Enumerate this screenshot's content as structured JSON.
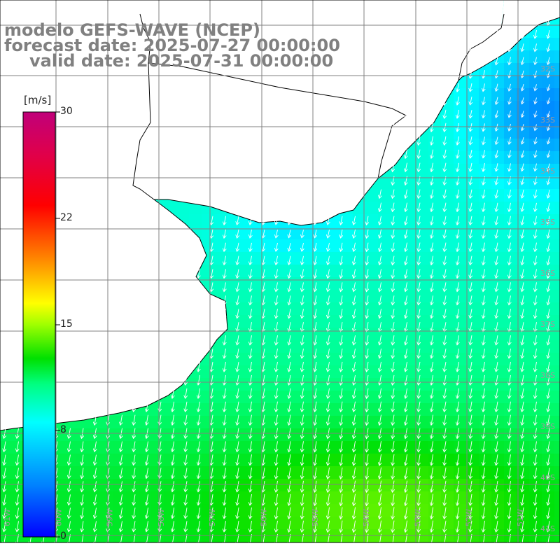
{
  "title": {
    "line1": "modelo GEFS-WAVE (NCEP)",
    "line2": "forecast date: 2025-07-27 00:00:00",
    "line3": "valid date: 2025-07-31 00:00:00"
  },
  "colorbar": {
    "units": "[m/s]",
    "min": 0,
    "max": 30,
    "ticks": [
      "30",
      "22",
      "15",
      "8",
      "0"
    ],
    "tick_values": [
      30,
      22,
      15,
      8,
      0
    ],
    "colors": [
      "#0000ff",
      "#0090ff",
      "#00ffff",
      "#00ff90",
      "#00e000",
      "#80ff00",
      "#ffff00",
      "#ff9000",
      "#ff2000",
      "#ff0000",
      "#c8007a"
    ]
  },
  "map": {
    "longitude_labels": [
      "61W",
      "60W",
      "59W",
      "58W",
      "57W",
      "56W",
      "55W",
      "54W",
      "53W",
      "52W",
      "51W",
      "50W"
    ],
    "latitude_labels": [
      "32S",
      "33S",
      "34S",
      "35S",
      "36S",
      "37S",
      "38S",
      "39S",
      "40S",
      "41S"
    ],
    "land_color": "#ffffff",
    "grid_color": "#808080",
    "arrow_color": "#ffffff"
  },
  "chart_data": {
    "type": "heatmap",
    "variable": "wind speed",
    "units": "m/s",
    "vmin": 0,
    "vmax": 30,
    "region": "South Atlantic off Uruguay / southern Brazil / Rio de la Plata",
    "speed_range_observed": [
      3,
      15
    ],
    "prevailing_direction": "flow toward the south-southwest",
    "field_description_levels": {
      "northeast_offshore": 4,
      "coastal_shelf": 9,
      "south_central": 12,
      "south_peak": 14
    }
  }
}
